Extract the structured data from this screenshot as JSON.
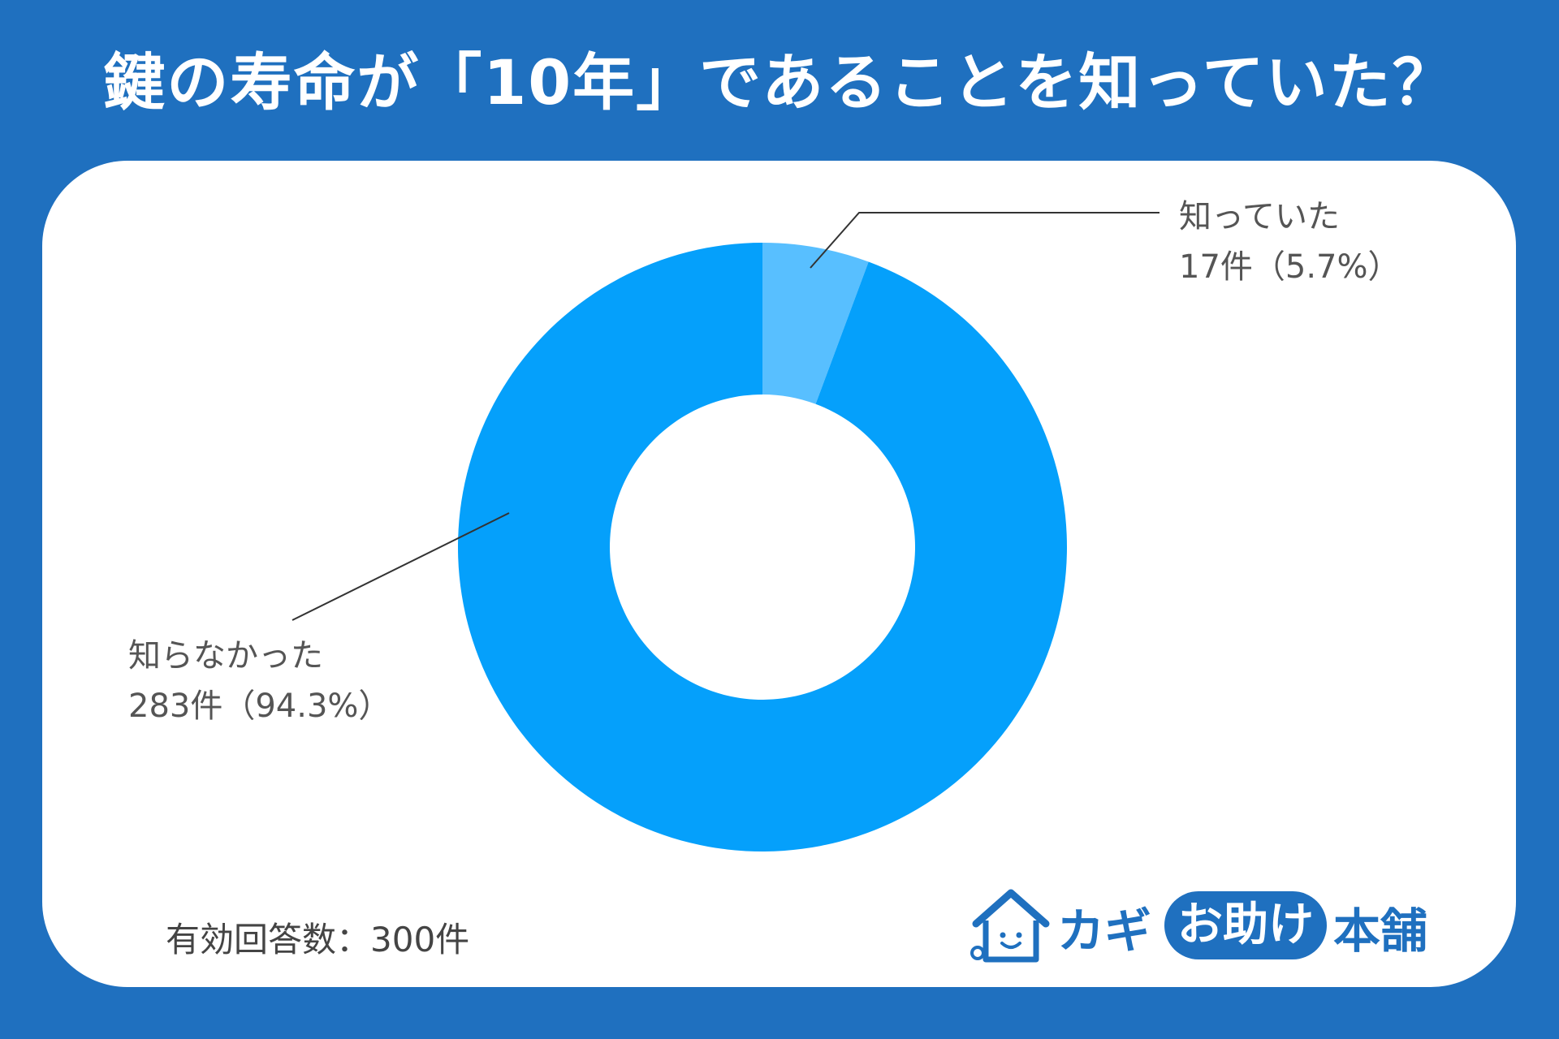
{
  "title": "鍵の寿命が「10年」であることを知っていた？",
  "chart_data": {
    "type": "pie",
    "donut": true,
    "slices": [
      {
        "name": "知っていた",
        "count_label": "17件（5.7%）",
        "value": 17,
        "percent": 5.7,
        "color": "#58bfff"
      },
      {
        "name": "知らなかった",
        "count_label": "283件（94.3%）",
        "value": 283,
        "percent": 94.3,
        "color": "#05a0fb"
      }
    ],
    "total": 300
  },
  "footnote": "有効回答数：300件",
  "logo": {
    "part1": "カギ",
    "part2": "お助け",
    "part3": "本舗",
    "icon": "house-key-icon"
  },
  "colors": {
    "background": "#1f70bf",
    "card": "#ffffff",
    "leader_line": "#333333"
  }
}
